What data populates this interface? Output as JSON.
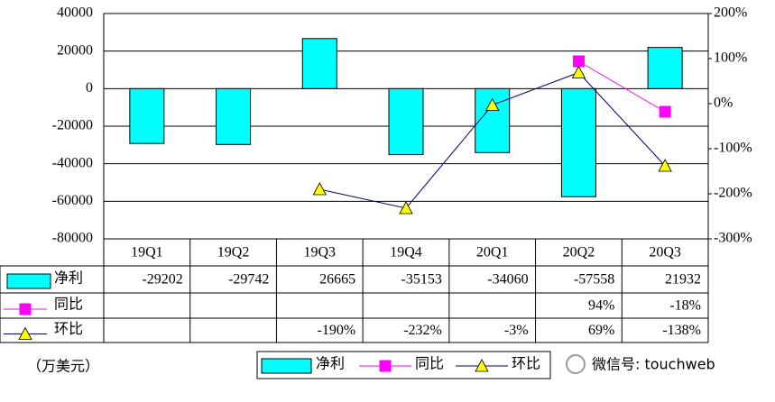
{
  "chart_data": {
    "type": "bar-line-table",
    "categories": [
      "19Q1",
      "19Q2",
      "19Q3",
      "19Q4",
      "20Q1",
      "20Q2",
      "20Q3"
    ],
    "series": [
      {
        "name": "净利",
        "color": "#00ffff",
        "values": [
          -29202,
          -29742,
          26665,
          -35153,
          -34060,
          -57558,
          21932
        ]
      },
      {
        "name": "同比",
        "color": "#ff00ff",
        "marker": "square",
        "marker_color": "#ff00ff",
        "axis": "y2",
        "values": [
          null,
          null,
          null,
          null,
          null,
          94,
          -18
        ],
        "value_labels": [
          null,
          null,
          null,
          null,
          null,
          "94%",
          "-18%"
        ]
      },
      {
        "name": "环比",
        "color": "#000066",
        "marker": "triangle",
        "marker_color": "#ffff00",
        "axis": "y2",
        "values": [
          null,
          null,
          -190,
          -232,
          -3,
          69,
          -138
        ],
        "value_labels": [
          null,
          null,
          "-190%",
          "-232%",
          "-3%",
          "69%",
          "-138%"
        ]
      }
    ],
    "ylim": [
      -80000,
      40000
    ],
    "yticks": [
      -80000,
      -60000,
      -40000,
      -20000,
      0,
      20000,
      40000
    ],
    "y2lim": [
      -300,
      200
    ],
    "y2ticks": [
      {
        "value": -300,
        "label": "-300%"
      },
      {
        "value": -200,
        "label": "-200%"
      },
      {
        "value": -100,
        "label": "-100%"
      },
      {
        "value": 0,
        "label": "0%"
      },
      {
        "value": 100,
        "label": "100%"
      },
      {
        "value": 200,
        "label": "200%"
      }
    ],
    "grid": true,
    "unit_label": "（万美元）",
    "watermark": "微信号: touchweb"
  }
}
